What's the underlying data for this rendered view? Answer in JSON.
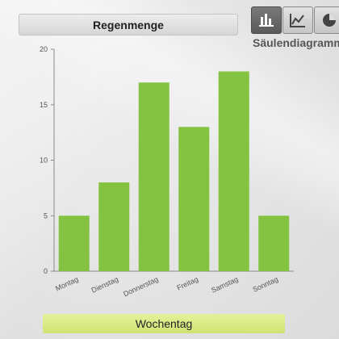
{
  "header": {
    "title": "Regenmenge"
  },
  "toolbar": {
    "buttons": [
      {
        "icon": "bar-chart-icon",
        "active": true
      },
      {
        "icon": "line-chart-icon",
        "active": false
      },
      {
        "icon": "pie-chart-icon",
        "active": false
      }
    ],
    "mode_label": "Säulendiagramm"
  },
  "chart_data": {
    "type": "bar",
    "title": "Regenmenge",
    "xlabel": "Wochentag",
    "ylabel": "",
    "categories": [
      "Montag",
      "Dienstag",
      "Donnerstag",
      "Freitag",
      "Samstag",
      "Sonntag"
    ],
    "values": [
      5,
      8,
      17,
      13,
      18,
      5
    ],
    "ylim": [
      0,
      20
    ],
    "yticks": [
      0,
      5,
      10,
      15,
      20
    ],
    "grid": false,
    "colors": {
      "bar": "#84c341",
      "axis": "#8a8a8a"
    }
  }
}
